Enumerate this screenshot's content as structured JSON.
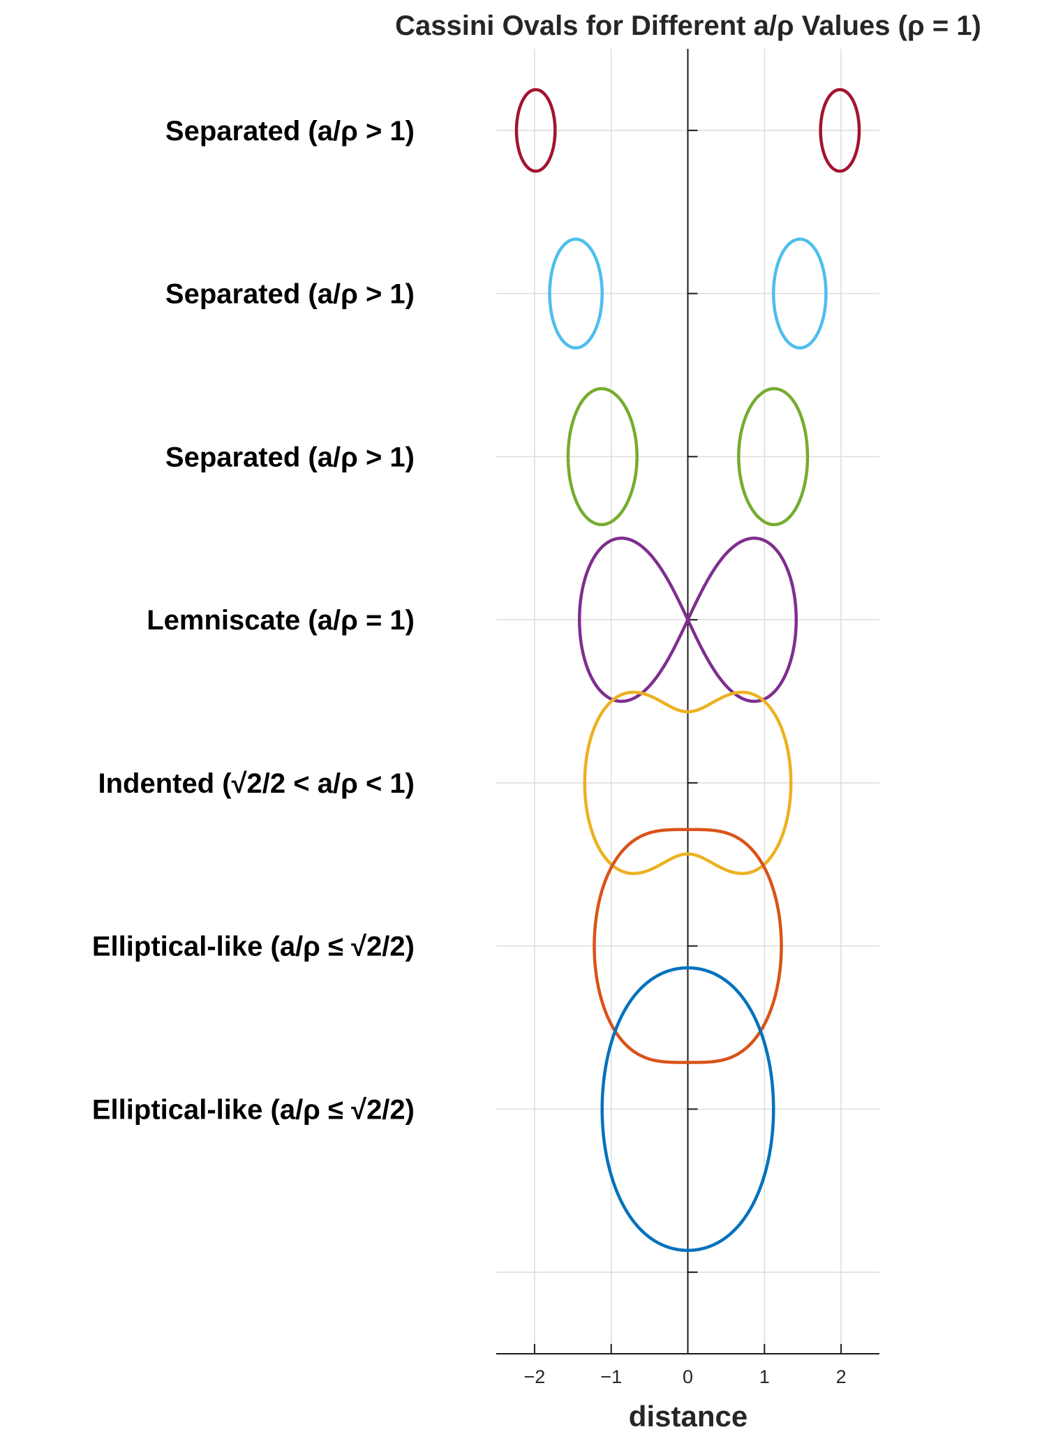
{
  "chart_data": {
    "type": "line",
    "title": "Cassini Ovals for Different a/ρ Values (ρ = 1)",
    "xlabel": "distance",
    "ylabel": "",
    "xlim": [
      -2.5,
      2.5
    ],
    "ylim": [
      -0.5,
      7.5
    ],
    "xticks": [
      -2,
      -1,
      0,
      1,
      2
    ],
    "xtick_labels": [
      "−2",
      "−1",
      "0",
      "1",
      "2"
    ],
    "grid": true,
    "rows": [
      {
        "label": "Separated (a/ρ > 1)",
        "a": 2.0,
        "rho": 1.0,
        "color": "#A2142F"
      },
      {
        "label": "Separated (a/ρ > 1)",
        "a": 1.5,
        "rho": 1.0,
        "color": "#4DBEEE"
      },
      {
        "label": "Separated (a/ρ > 1)",
        "a": 1.2,
        "rho": 1.0,
        "color": "#77AC30"
      },
      {
        "label": "Lemniscate (a/ρ = 1)",
        "a": 1.0,
        "rho": 1.0,
        "color": "#7E2F8E"
      },
      {
        "label": "Indented (√2/2 < a/ρ < 1)",
        "a": 0.9,
        "rho": 1.0,
        "color": "#EDB120"
      },
      {
        "label": "Elliptical-like (a/ρ ≤ √2/2)",
        "a": 0.7,
        "rho": 1.0,
        "color": "#D95319"
      },
      {
        "label": "Elliptical-like (a/ρ ≤ √2/2)",
        "a": 0.5,
        "rho": 1.0,
        "color": "#0072BD"
      }
    ]
  }
}
